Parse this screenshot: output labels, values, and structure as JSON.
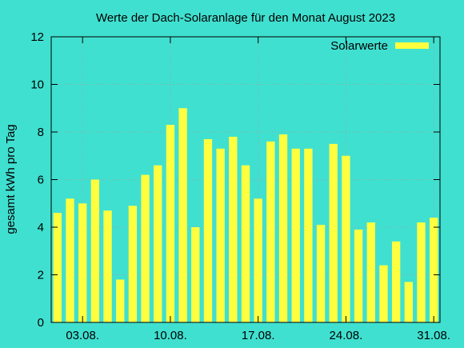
{
  "colors": {
    "background": "#40e0d0",
    "bar": "#ffff40",
    "axis": "#000000",
    "grid": "#a0a0a0"
  },
  "chart_data": {
    "type": "bar",
    "title": "Werte der Dach-Solaranlage für den Monat August 2023",
    "xlabel": "",
    "ylabel": "gesamt kWh pro Tag",
    "ylim": [
      0,
      12
    ],
    "yticks": [
      0,
      2,
      4,
      6,
      8,
      10,
      12
    ],
    "grid": true,
    "legend_position": "top-right",
    "x_tick_labels": [
      {
        "day": 3,
        "label": "03.08."
      },
      {
        "day": 10,
        "label": "10.08."
      },
      {
        "day": 17,
        "label": "17.08."
      },
      {
        "day": 24,
        "label": "24.08."
      },
      {
        "day": 31,
        "label": "31.08."
      }
    ],
    "series": [
      {
        "name": "Solarwerte",
        "days": [
          1,
          2,
          3,
          4,
          5,
          6,
          7,
          8,
          9,
          10,
          11,
          12,
          13,
          14,
          15,
          16,
          17,
          18,
          19,
          20,
          21,
          22,
          23,
          24,
          25,
          26,
          27,
          28,
          29,
          30,
          31
        ],
        "values": [
          4.6,
          5.2,
          5.0,
          6.0,
          4.7,
          1.8,
          4.9,
          6.2,
          6.6,
          8.3,
          9.0,
          4.0,
          7.7,
          7.3,
          7.8,
          6.6,
          5.2,
          7.6,
          7.9,
          7.3,
          7.3,
          4.1,
          7.5,
          7.0,
          3.9,
          4.2,
          2.4,
          3.4,
          1.7,
          4.2,
          4.4
        ]
      }
    ]
  }
}
